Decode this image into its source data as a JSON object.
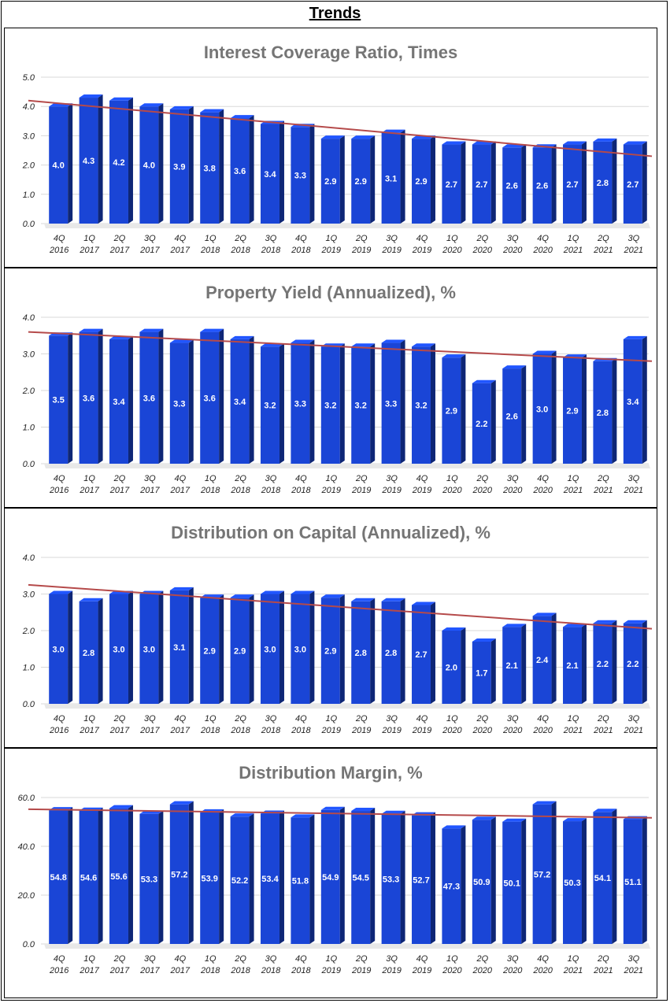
{
  "page": {
    "title": "Trends"
  },
  "chart_data": [
    {
      "type": "bar",
      "title": "Interest Coverage Ratio, Times",
      "categories": [
        [
          "4Q",
          "2016"
        ],
        [
          "1Q",
          "2017"
        ],
        [
          "2Q",
          "2017"
        ],
        [
          "3Q",
          "2017"
        ],
        [
          "4Q",
          "2017"
        ],
        [
          "1Q",
          "2018"
        ],
        [
          "2Q",
          "2018"
        ],
        [
          "3Q",
          "2018"
        ],
        [
          "4Q",
          "2018"
        ],
        [
          "1Q",
          "2019"
        ],
        [
          "2Q",
          "2019"
        ],
        [
          "3Q",
          "2019"
        ],
        [
          "4Q",
          "2019"
        ],
        [
          "1Q",
          "2020"
        ],
        [
          "2Q",
          "2020"
        ],
        [
          "3Q",
          "2020"
        ],
        [
          "4Q",
          "2020"
        ],
        [
          "1Q",
          "2021"
        ],
        [
          "2Q",
          "2021"
        ],
        [
          "3Q",
          "2021"
        ]
      ],
      "values": [
        4.0,
        4.3,
        4.2,
        4.0,
        3.9,
        3.8,
        3.6,
        3.4,
        3.3,
        2.9,
        2.9,
        3.1,
        2.9,
        2.7,
        2.7,
        2.6,
        2.6,
        2.7,
        2.8,
        2.7
      ],
      "value_labels": [
        "4.0",
        "4.3",
        "4.2",
        "4.0",
        "3.9",
        "3.8",
        "3.6",
        "3.4",
        "3.3",
        "2.9",
        "2.9",
        "3.1",
        "2.9",
        "2.7",
        "2.7",
        "2.6",
        "2.6",
        "2.7",
        "2.8",
        "2.7"
      ],
      "yticks": [
        "0.0",
        "1.0",
        "2.0",
        "3.0",
        "4.0",
        "5.0"
      ],
      "ytick_values": [
        0,
        1,
        2,
        3,
        4,
        5
      ],
      "ylim": [
        0,
        5
      ],
      "trendline": [
        4.2,
        2.3
      ],
      "bar_color": "#1a45d6",
      "trend_color": "#b54a4a"
    },
    {
      "type": "bar",
      "title": "Property Yield (Annualized), %",
      "categories": [
        [
          "4Q",
          "2016"
        ],
        [
          "1Q",
          "2017"
        ],
        [
          "2Q",
          "2017"
        ],
        [
          "3Q",
          "2017"
        ],
        [
          "4Q",
          "2017"
        ],
        [
          "1Q",
          "2018"
        ],
        [
          "2Q",
          "2018"
        ],
        [
          "3Q",
          "2018"
        ],
        [
          "4Q",
          "2018"
        ],
        [
          "1Q",
          "2019"
        ],
        [
          "2Q",
          "2019"
        ],
        [
          "3Q",
          "2019"
        ],
        [
          "4Q",
          "2019"
        ],
        [
          "1Q",
          "2020"
        ],
        [
          "2Q",
          "2020"
        ],
        [
          "3Q",
          "2020"
        ],
        [
          "4Q",
          "2020"
        ],
        [
          "1Q",
          "2021"
        ],
        [
          "2Q",
          "2021"
        ],
        [
          "3Q",
          "2021"
        ]
      ],
      "values": [
        3.5,
        3.6,
        3.4,
        3.6,
        3.3,
        3.6,
        3.4,
        3.2,
        3.3,
        3.2,
        3.2,
        3.3,
        3.2,
        2.9,
        2.2,
        2.6,
        3.0,
        2.9,
        2.8,
        3.4
      ],
      "value_labels": [
        "3.5",
        "3.6",
        "3.4",
        "3.6",
        "3.3",
        "3.6",
        "3.4",
        "3.2",
        "3.3",
        "3.2",
        "3.2",
        "3.3",
        "3.2",
        "2.9",
        "2.2",
        "2.6",
        "3.0",
        "2.9",
        "2.8",
        "3.4"
      ],
      "yticks": [
        "0.0",
        "1.0",
        "2.0",
        "3.0",
        "4.0"
      ],
      "ytick_values": [
        0,
        1,
        2,
        3,
        4
      ],
      "ylim": [
        0,
        4
      ],
      "trendline": [
        3.6,
        2.8
      ],
      "bar_color": "#1a45d6",
      "trend_color": "#b54a4a"
    },
    {
      "type": "bar",
      "title": "Distribution on Capital (Annualized), %",
      "categories": [
        [
          "4Q",
          "2016"
        ],
        [
          "1Q",
          "2017"
        ],
        [
          "2Q",
          "2017"
        ],
        [
          "3Q",
          "2017"
        ],
        [
          "4Q",
          "2017"
        ],
        [
          "1Q",
          "2018"
        ],
        [
          "2Q",
          "2018"
        ],
        [
          "3Q",
          "2018"
        ],
        [
          "4Q",
          "2018"
        ],
        [
          "1Q",
          "2019"
        ],
        [
          "2Q",
          "2019"
        ],
        [
          "3Q",
          "2019"
        ],
        [
          "4Q",
          "2019"
        ],
        [
          "1Q",
          "2020"
        ],
        [
          "2Q",
          "2020"
        ],
        [
          "3Q",
          "2020"
        ],
        [
          "4Q",
          "2020"
        ],
        [
          "1Q",
          "2021"
        ],
        [
          "2Q",
          "2021"
        ],
        [
          "3Q",
          "2021"
        ]
      ],
      "values": [
        3.0,
        2.8,
        3.0,
        3.0,
        3.1,
        2.9,
        2.9,
        3.0,
        3.0,
        2.9,
        2.8,
        2.8,
        2.7,
        2.0,
        1.7,
        2.1,
        2.4,
        2.1,
        2.2,
        2.2
      ],
      "value_labels": [
        "3.0",
        "2.8",
        "3.0",
        "3.0",
        "3.1",
        "2.9",
        "2.9",
        "3.0",
        "3.0",
        "2.9",
        "2.8",
        "2.8",
        "2.7",
        "2.0",
        "1.7",
        "2.1",
        "2.4",
        "2.1",
        "2.2",
        "2.2"
      ],
      "yticks": [
        "0.0",
        "1.0",
        "2.0",
        "3.0",
        "4.0"
      ],
      "ytick_values": [
        0,
        1,
        2,
        3,
        4
      ],
      "ylim": [
        0,
        4
      ],
      "trendline": [
        3.25,
        2.05
      ],
      "bar_color": "#1a45d6",
      "trend_color": "#b54a4a"
    },
    {
      "type": "bar",
      "title": "Distribution Margin, %",
      "categories": [
        [
          "4Q",
          "2016"
        ],
        [
          "1Q",
          "2017"
        ],
        [
          "2Q",
          "2017"
        ],
        [
          "3Q",
          "2017"
        ],
        [
          "4Q",
          "2017"
        ],
        [
          "1Q",
          "2018"
        ],
        [
          "2Q",
          "2018"
        ],
        [
          "3Q",
          "2018"
        ],
        [
          "4Q",
          "2018"
        ],
        [
          "1Q",
          "2019"
        ],
        [
          "2Q",
          "2019"
        ],
        [
          "3Q",
          "2019"
        ],
        [
          "4Q",
          "2019"
        ],
        [
          "1Q",
          "2020"
        ],
        [
          "2Q",
          "2020"
        ],
        [
          "3Q",
          "2020"
        ],
        [
          "4Q",
          "2020"
        ],
        [
          "1Q",
          "2021"
        ],
        [
          "2Q",
          "2021"
        ],
        [
          "3Q",
          "2021"
        ]
      ],
      "values": [
        54.8,
        54.6,
        55.6,
        53.3,
        57.2,
        53.9,
        52.2,
        53.4,
        51.8,
        54.9,
        54.5,
        53.3,
        52.7,
        47.3,
        50.9,
        50.1,
        57.2,
        50.3,
        54.1,
        51.1
      ],
      "value_labels": [
        "54.8",
        "54.6",
        "55.6",
        "53.3",
        "57.2",
        "53.9",
        "52.2",
        "53.4",
        "51.8",
        "54.9",
        "54.5",
        "53.3",
        "52.7",
        "47.3",
        "50.9",
        "50.1",
        "57.2",
        "50.3",
        "54.1",
        "51.1"
      ],
      "yticks": [
        "0.0",
        "20.0",
        "40.0",
        "60.0"
      ],
      "ytick_values": [
        0,
        20,
        40,
        60
      ],
      "ylim": [
        0,
        60
      ],
      "trendline": [
        55.2,
        51.7
      ],
      "bar_color": "#1a45d6",
      "trend_color": "#b54a4a"
    }
  ]
}
